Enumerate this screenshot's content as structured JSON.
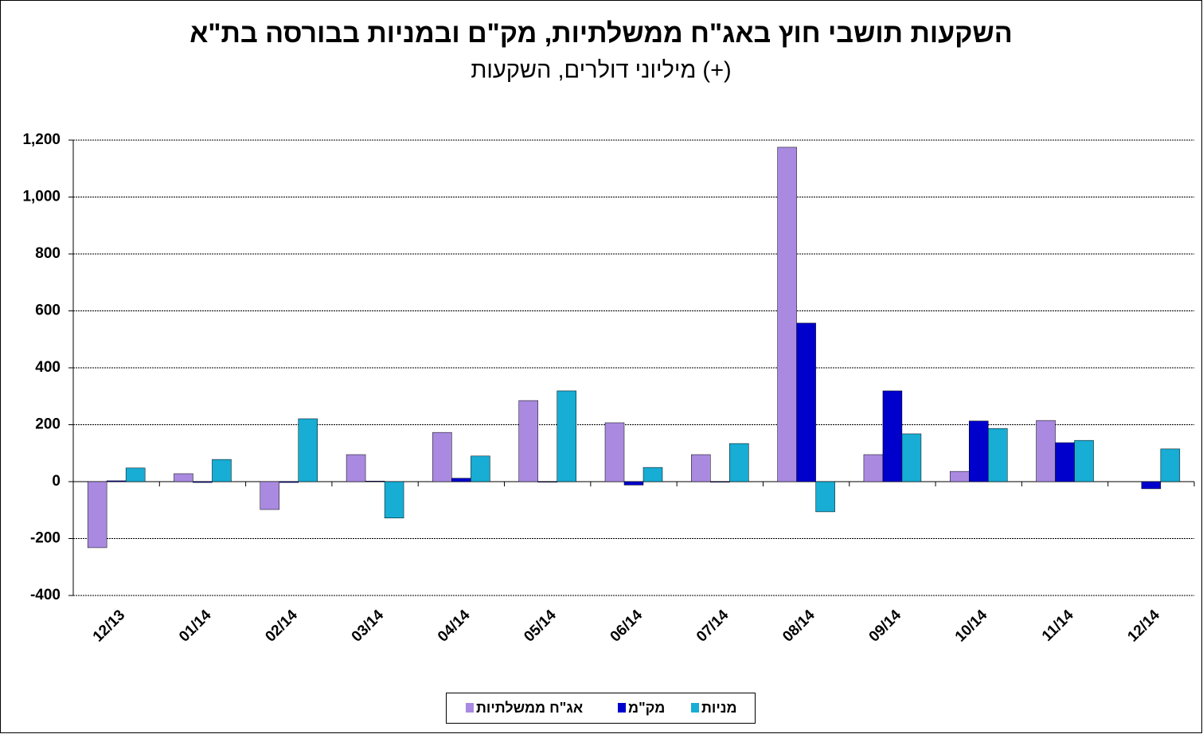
{
  "chart_data": {
    "type": "bar",
    "title": "השקעות תושבי חוץ באג\"ח ממשלתיות, מק\"ם ובמניות בבורסה בת\"א",
    "subtitle": "מיליוני דולרים, השקעות (+)",
    "categories": [
      "12/13",
      "01/14",
      "02/14",
      "03/14",
      "04/14",
      "05/14",
      "06/14",
      "07/14",
      "08/14",
      "09/14",
      "10/14",
      "11/14",
      "12/14"
    ],
    "series": [
      {
        "name": "אג\"ח ממשלתיות",
        "color": "#a98ae0",
        "values": [
          -232,
          28,
          -98,
          95,
          173,
          285,
          207,
          95,
          1175,
          95,
          36,
          215,
          0
        ]
      },
      {
        "name": "מק\"מ",
        "color": "#0000cc",
        "values": [
          3,
          -3,
          -3,
          2,
          12,
          -2,
          -12,
          -2,
          557,
          319,
          213,
          137,
          -25
        ]
      },
      {
        "name": "מניות",
        "color": "#17add4",
        "values": [
          48,
          78,
          221,
          -128,
          90,
          319,
          50,
          134,
          -106,
          168,
          187,
          145,
          115
        ]
      }
    ],
    "ylim": [
      -400,
      1200
    ],
    "yticks": [
      -400,
      -200,
      0,
      200,
      400,
      600,
      800,
      {
        "value": 1000,
        "label": "1,000"
      },
      {
        "value": 1200,
        "label": "1,200"
      }
    ],
    "grid": true
  }
}
